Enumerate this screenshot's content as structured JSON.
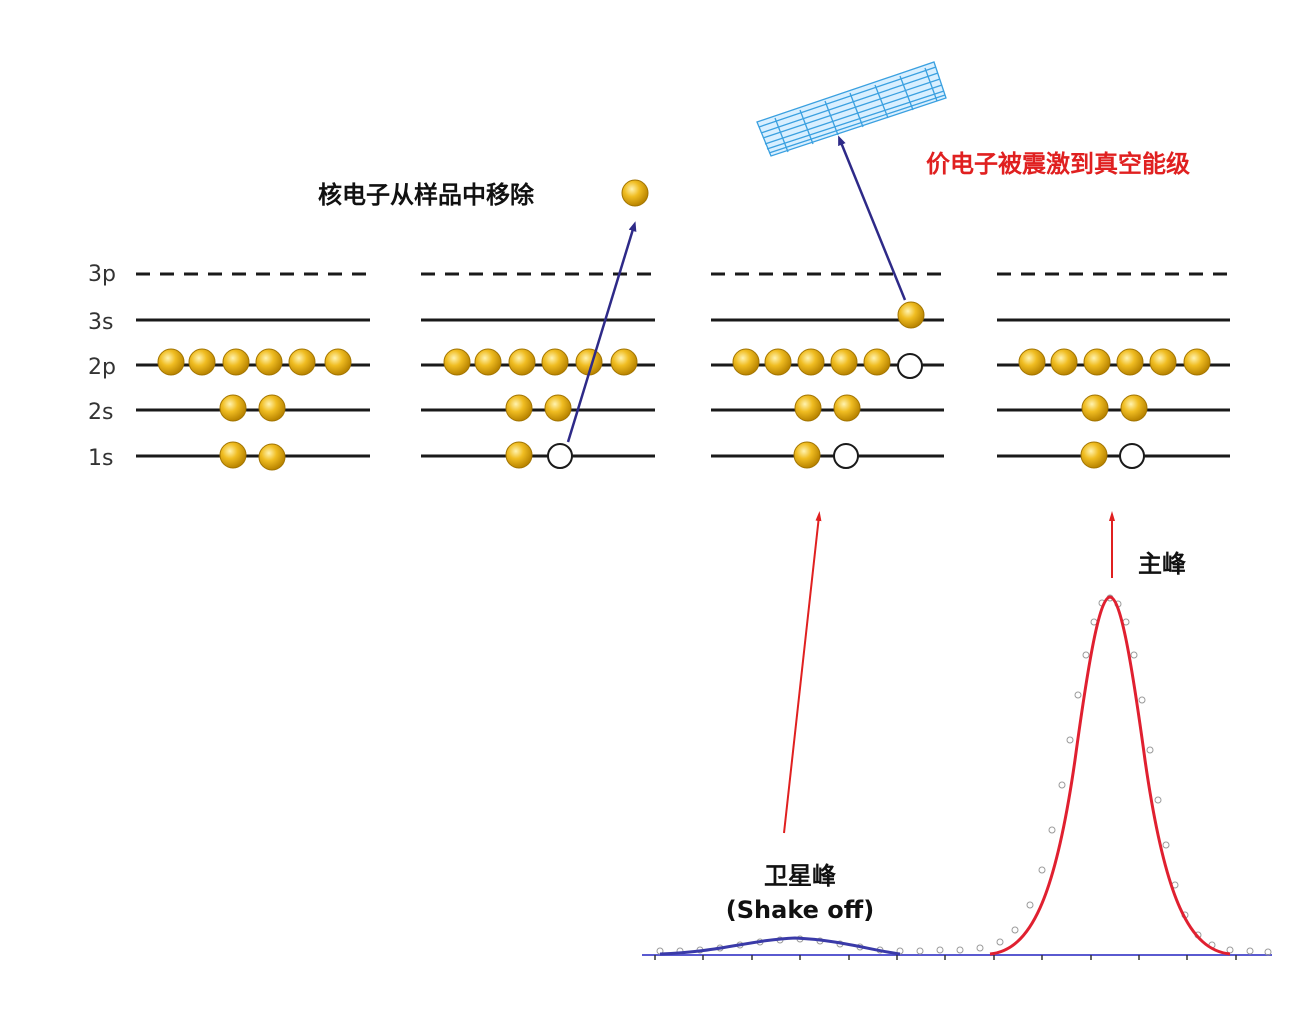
{
  "levels": [
    "3p",
    "3s",
    "2p",
    "2s",
    "1s"
  ],
  "annotations": {
    "core_removed": "核电子从样品中移除",
    "valence_excited": "价电子被震激到真空能级",
    "main_peak": "主峰",
    "satellite_peak": "卫星峰",
    "shake_off": "(Shake off)"
  },
  "colors": {
    "electron": "#e8b015",
    "electron_edge": "#a27400",
    "transition_arrow": "#2e2a88",
    "peak_arrow": "#e02020",
    "highlight_text": "#e02020",
    "main_fit": "#e02030",
    "satellite_fit": "#3a3aa8",
    "baseline": "#5a5ad0",
    "vacuum_band": "#3aa0e0"
  },
  "panels": [
    {
      "name": "initial-state",
      "electrons": {
        "1s": 2,
        "2s": 2,
        "2p": 6,
        "3s": 0
      },
      "holes": {
        "1s": 0,
        "2p": 0
      }
    },
    {
      "name": "core-photoemission",
      "electrons": {
        "1s": 1,
        "2s": 2,
        "2p": 6,
        "3s": 0
      },
      "holes": {
        "1s": 1,
        "2p": 0
      }
    },
    {
      "name": "shake-off",
      "electrons": {
        "1s": 1,
        "2s": 2,
        "2p": 5,
        "3s": 1
      },
      "holes": {
        "1s": 1,
        "2p": 1
      }
    },
    {
      "name": "final-core-hole",
      "electrons": {
        "1s": 1,
        "2s": 2,
        "2p": 6,
        "3s": 0
      },
      "holes": {
        "1s": 1,
        "2p": 0
      }
    }
  ]
}
